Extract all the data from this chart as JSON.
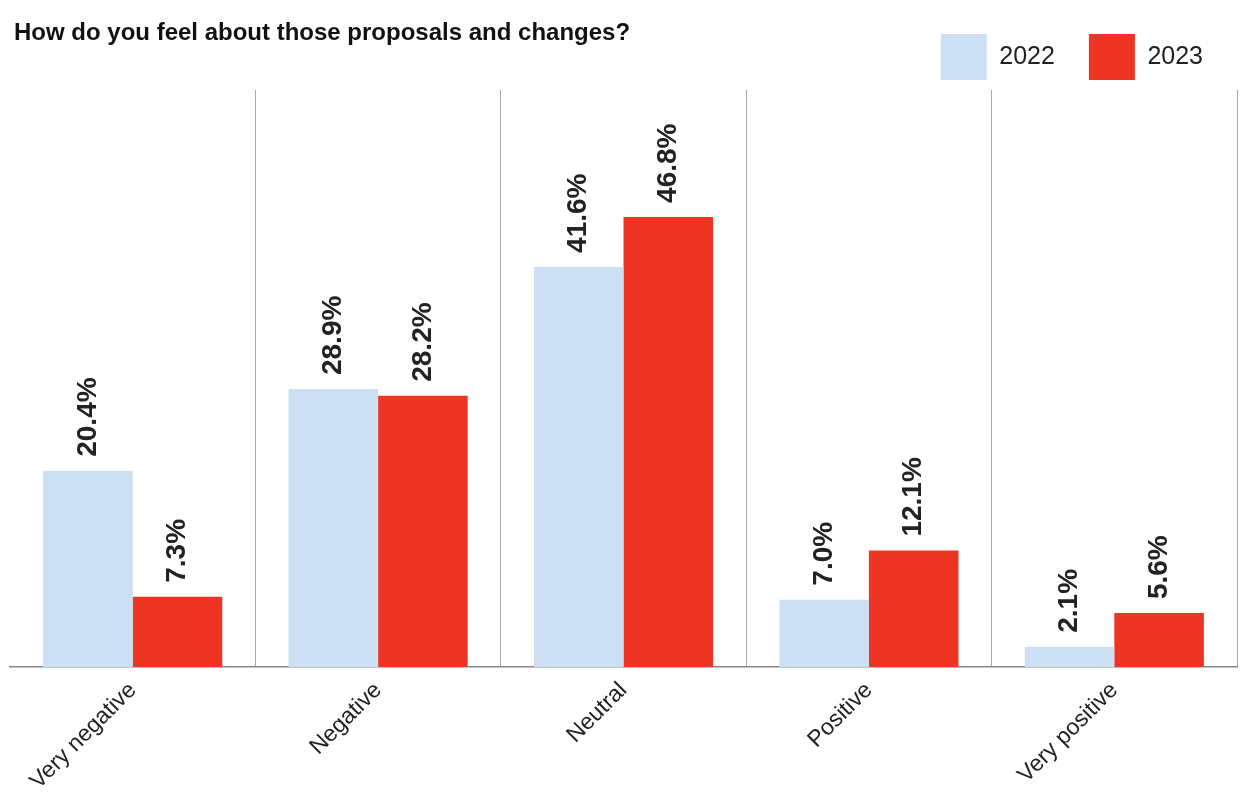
{
  "chart_data": {
    "type": "bar",
    "title": "How do you feel about those proposals and changes?",
    "categories": [
      "Very negative",
      "Negative",
      "Neutral",
      "Positive",
      "Very positive"
    ],
    "series": [
      {
        "name": "2022",
        "color": "#cddff3",
        "values": [
          20.4,
          28.9,
          41.6,
          7.0,
          2.1
        ],
        "value_labels": [
          "20.4%",
          "28.9%",
          "41.6%",
          "7.0%",
          "2.1%"
        ]
      },
      {
        "name": "2023",
        "color": "#ee3524",
        "values": [
          7.3,
          28.2,
          46.8,
          12.1,
          5.6
        ],
        "value_labels": [
          "7.3%",
          "28.2%",
          "46.8%",
          "12.1%",
          "5.6%"
        ]
      }
    ],
    "grid": "x",
    "legend": "top right",
    "tick_labels": "x"
  }
}
